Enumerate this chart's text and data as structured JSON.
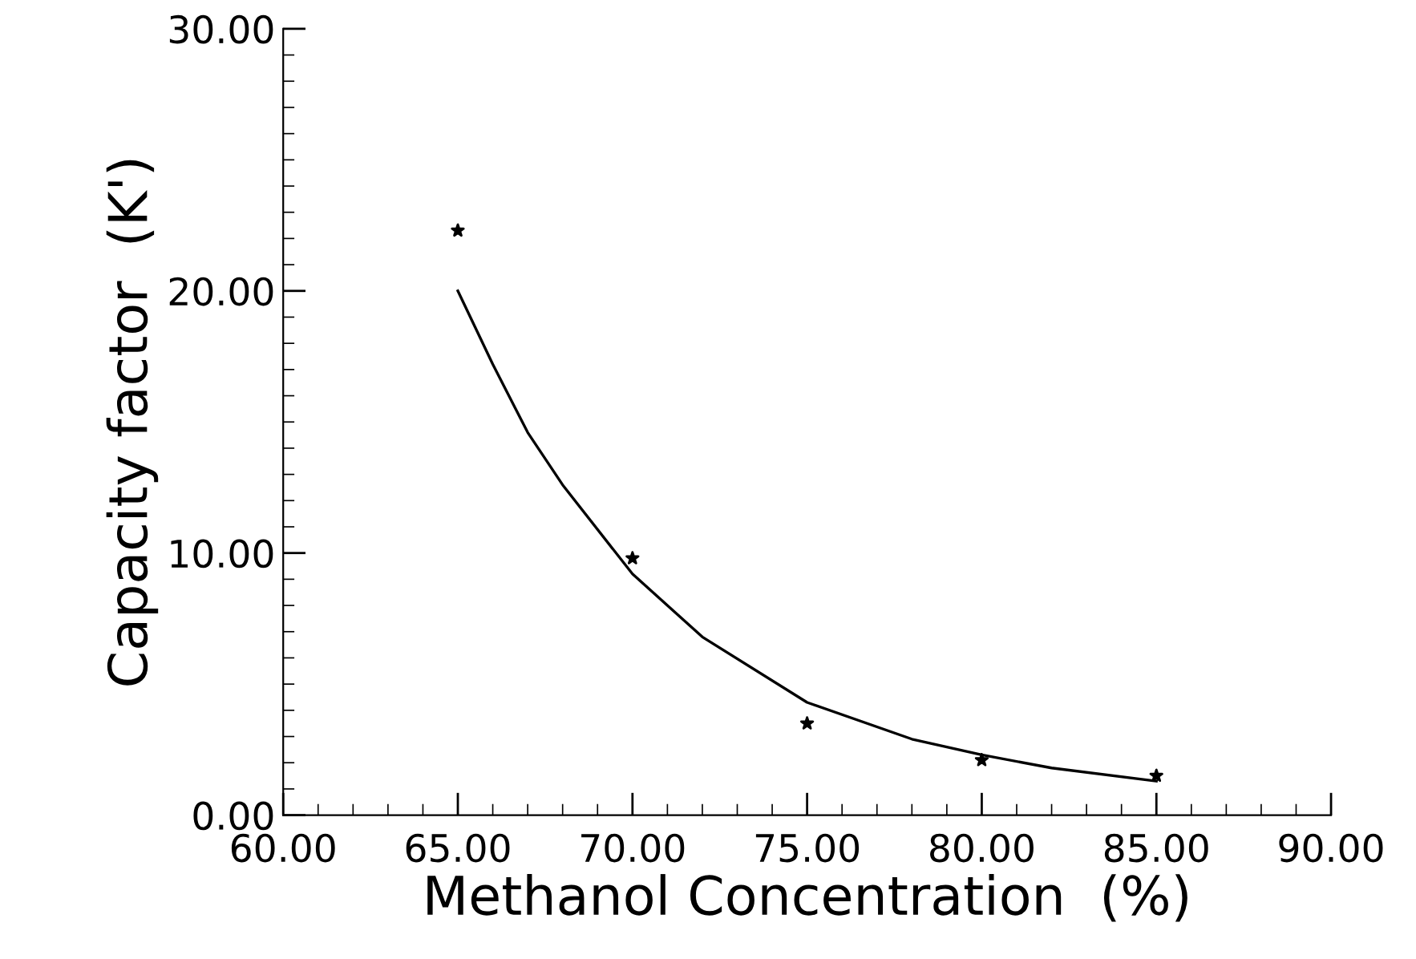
{
  "chart_data": {
    "type": "scatter",
    "xlabel": "Methanol Concentration  (%)",
    "ylabel": "Capacity factor  (K')",
    "x": [
      65,
      70,
      75,
      80,
      85
    ],
    "series": [
      {
        "color": "#000000",
        "marker": "star",
        "values": [
          22.3,
          9.8,
          3.5,
          2.1,
          1.5
        ]
      },
      {
        "type": "line",
        "color": "#000000",
        "marker": "none",
        "line_style": "solid",
        "x": [
          65,
          66,
          67,
          68,
          70,
          72,
          75,
          78,
          80,
          82,
          85
        ],
        "values": [
          20.0,
          17.2,
          14.6,
          12.6,
          9.2,
          6.8,
          4.3,
          2.9,
          2.3,
          1.8,
          1.3
        ]
      }
    ],
    "xlim": [
      60,
      90
    ],
    "ylim": [
      0,
      30
    ],
    "xticks": [
      {
        "value": 60,
        "label": "60.00"
      },
      {
        "value": 65,
        "label": "65.00"
      },
      {
        "value": 70,
        "label": "70.00"
      },
      {
        "value": 75,
        "label": "75.00"
      },
      {
        "value": 80,
        "label": "80.00"
      },
      {
        "value": 85,
        "label": "85.00"
      },
      {
        "value": 90,
        "label": "90.00"
      }
    ],
    "yticks": [
      {
        "value": 0,
        "label": "0.00"
      },
      {
        "value": 10,
        "label": "10.00"
      },
      {
        "value": 20,
        "label": "20.00"
      },
      {
        "value": 30,
        "label": "30.00"
      }
    ],
    "grid": false,
    "legend": false
  }
}
